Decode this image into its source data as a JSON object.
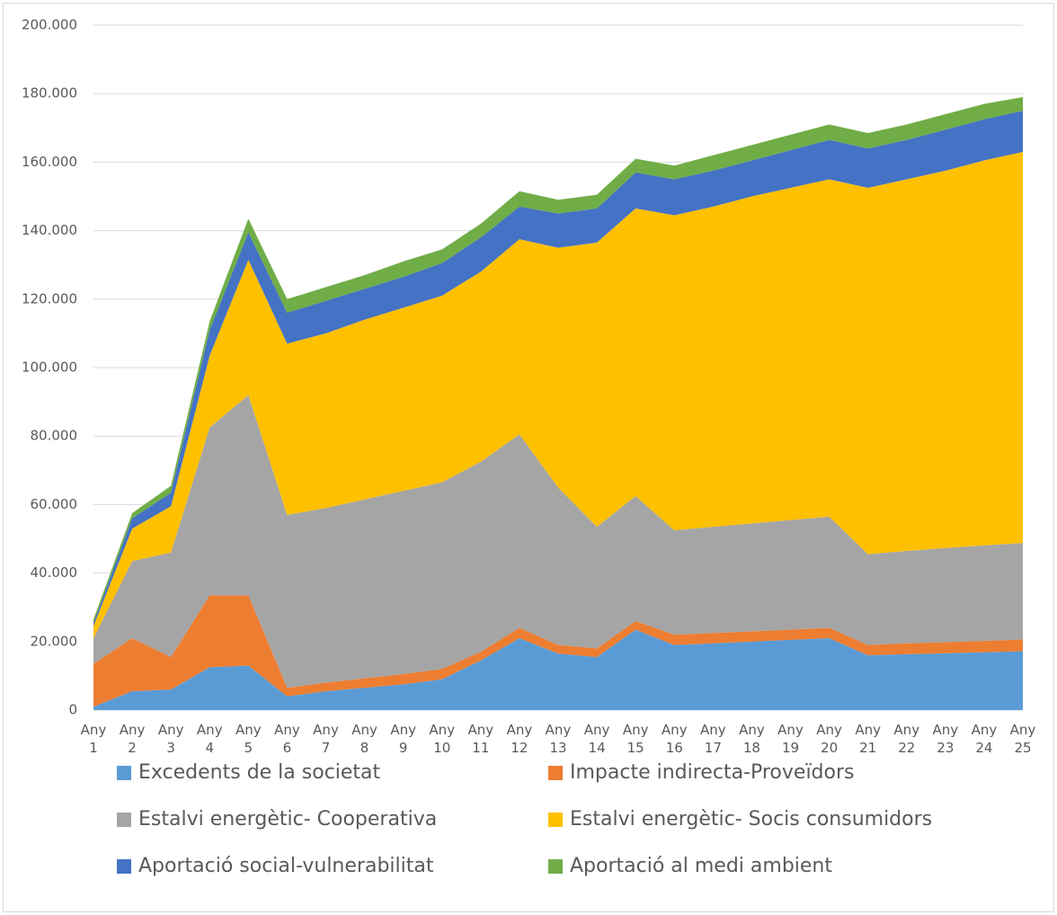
{
  "chart_data": {
    "type": "stacked_area",
    "categories": [
      "Any 1",
      "Any 2",
      "Any 3",
      "Any 4",
      "Any 5",
      "Any 6",
      "Any 7",
      "Any 8",
      "Any 9",
      "Any 10",
      "Any 11",
      "Any 12",
      "Any 13",
      "Any 14",
      "Any 15",
      "Any 16",
      "Any 17",
      "Any 18",
      "Any 19",
      "Any 20",
      "Any 21",
      "Any 22",
      "Any 23",
      "Any 24",
      "Any 25"
    ],
    "series": [
      {
        "name": "Excedents de la societat",
        "color": "#5b9bd5",
        "values": [
          1000,
          5500,
          6000,
          12500,
          13000,
          4000,
          5500,
          6500,
          7500,
          9000,
          14500,
          21000,
          16500,
          15500,
          23500,
          19000,
          19500,
          20000,
          20500,
          21000,
          16000,
          16300,
          16600,
          16900,
          17200
        ]
      },
      {
        "name": "Impacte indirecta-Proveïdors",
        "color": "#ed7d31",
        "values": [
          12500,
          15500,
          9500,
          21000,
          20500,
          2500,
          2500,
          2800,
          3000,
          3000,
          2500,
          3000,
          2500,
          2500,
          2500,
          3000,
          3000,
          3000,
          3000,
          3000,
          3000,
          3200,
          3200,
          3300,
          3400
        ]
      },
      {
        "name": "Estalvi energètic- Cooperativa",
        "color": "#a5a5a5",
        "values": [
          7500,
          22500,
          30500,
          49000,
          58500,
          50500,
          51000,
          52200,
          53500,
          54500,
          55500,
          56500,
          46000,
          35500,
          36500,
          30500,
          31000,
          31500,
          32000,
          32500,
          26500,
          27000,
          27500,
          27900,
          28200
        ]
      },
      {
        "name": "Estalvi energètic- Socis consumidors",
        "color": "#ffc000",
        "values": [
          3500,
          9500,
          13500,
          21000,
          39500,
          50000,
          51000,
          52500,
          53500,
          54500,
          55500,
          57000,
          70000,
          83000,
          84000,
          92000,
          93500,
          95500,
          97000,
          98500,
          107000,
          108500,
          110200,
          112400,
          114200
        ]
      },
      {
        "name": "Aportació social-vulnerabilitat",
        "color": "#4472c4",
        "values": [
          1000,
          3000,
          4000,
          7500,
          8000,
          9000,
          9500,
          9000,
          9000,
          9500,
          10000,
          9500,
          10000,
          10000,
          10500,
          10500,
          10500,
          10500,
          11000,
          11500,
          11500,
          11500,
          12000,
          12000,
          12000
        ]
      },
      {
        "name": "Aportació al medi ambient",
        "color": "#70ad47",
        "values": [
          1000,
          1500,
          2000,
          2500,
          4000,
          4000,
          4000,
          4000,
          4500,
          4000,
          4000,
          4500,
          4000,
          4000,
          4000,
          4000,
          4500,
          4500,
          4500,
          4500,
          4500,
          4500,
          4500,
          4500,
          4000
        ]
      }
    ],
    "ylim": [
      0,
      200000
    ],
    "yticks": [
      0,
      {
        "value": 20000,
        "label": "20.000"
      },
      {
        "value": 40000,
        "label": "40.000"
      },
      {
        "value": 60000,
        "label": "60.000"
      },
      {
        "value": 80000,
        "label": "80.000"
      },
      {
        "value": 100000,
        "label": "100.000"
      },
      {
        "value": 120000,
        "label": "120.000"
      },
      {
        "value": 140000,
        "label": "140.000"
      },
      {
        "value": 160000,
        "label": "160.000"
      },
      {
        "value": 180000,
        "label": "180.000"
      },
      {
        "value": 200000,
        "label": "200.000"
      }
    ],
    "grid": true,
    "legend": "bottom"
  }
}
